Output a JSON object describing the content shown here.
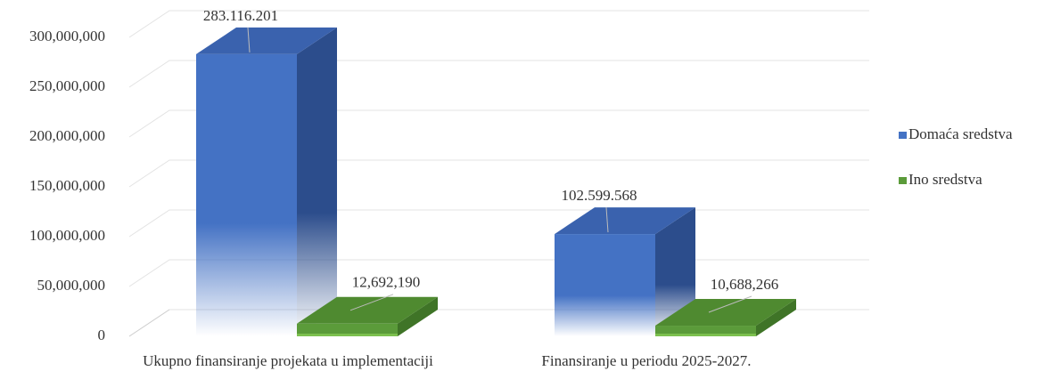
{
  "chart_data": {
    "type": "bar3d",
    "categories": [
      "Ukupno finansiranje projekata u implementaciji",
      "Finansiranje u periodu 2025-2027."
    ],
    "series": [
      {
        "name": "Domaća sredstva",
        "color": "#4472c4",
        "values": [
          283116201,
          102599568
        ],
        "value_labels": [
          "283.116.201",
          "102.599.568"
        ]
      },
      {
        "name": "Ino sredstva",
        "color": "#5b9b3a",
        "values": [
          12692190,
          10688266
        ],
        "value_labels": [
          "12,692,190",
          "10,688,266"
        ]
      }
    ],
    "ylim": [
      0,
      300000000
    ],
    "yticks": [
      0,
      {
        "value": 50000000,
        "label": "50,000,000"
      },
      {
        "value": 100000000,
        "label": "100,000,000"
      },
      {
        "value": 150000000,
        "label": "150,000,000"
      },
      {
        "value": 200000000,
        "label": "200,000,000"
      },
      {
        "value": 250000000,
        "label": "250,000,000"
      },
      {
        "value": 300000000,
        "label": "300,000,000"
      }
    ],
    "grid": true,
    "legend": "right"
  }
}
